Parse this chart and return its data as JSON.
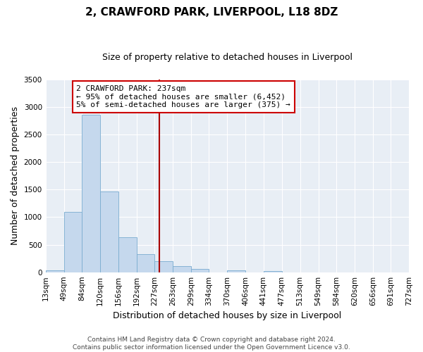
{
  "title": "2, CRAWFORD PARK, LIVERPOOL, L18 8DZ",
  "subtitle": "Size of property relative to detached houses in Liverpool",
  "xlabel": "Distribution of detached houses by size in Liverpool",
  "ylabel": "Number of detached properties",
  "bin_labels": [
    "13sqm",
    "49sqm",
    "84sqm",
    "120sqm",
    "156sqm",
    "192sqm",
    "227sqm",
    "263sqm",
    "299sqm",
    "334sqm",
    "370sqm",
    "406sqm",
    "441sqm",
    "477sqm",
    "513sqm",
    "549sqm",
    "584sqm",
    "620sqm",
    "656sqm",
    "691sqm",
    "727sqm"
  ],
  "bin_edges": [
    13,
    49,
    84,
    120,
    156,
    192,
    227,
    263,
    299,
    334,
    370,
    406,
    441,
    477,
    513,
    549,
    584,
    620,
    656,
    691,
    727
  ],
  "bar_heights": [
    40,
    1090,
    2860,
    1470,
    630,
    330,
    195,
    110,
    65,
    0,
    40,
    0,
    20,
    0,
    0,
    0,
    0,
    0,
    0,
    0
  ],
  "bar_color": "#c5d8ed",
  "bar_edge_color": "#7aacd0",
  "axes_bg_color": "#e8eef5",
  "vline_x": 237,
  "vline_color": "#aa0000",
  "ylim": [
    0,
    3500
  ],
  "yticks": [
    0,
    500,
    1000,
    1500,
    2000,
    2500,
    3000,
    3500
  ],
  "annotation_line1": "2 CRAWFORD PARK: 237sqm",
  "annotation_line2": "← 95% of detached houses are smaller (6,452)",
  "annotation_line3": "5% of semi-detached houses are larger (375) →",
  "annotation_box_color": "#ffffff",
  "annotation_box_edge_color": "#cc0000",
  "footer_line1": "Contains HM Land Registry data © Crown copyright and database right 2024.",
  "footer_line2": "Contains public sector information licensed under the Open Government Licence v3.0.",
  "title_fontsize": 11,
  "subtitle_fontsize": 9,
  "annotation_fontsize": 8,
  "ylabel_fontsize": 9,
  "xlabel_fontsize": 9,
  "tick_fontsize": 7.5,
  "footer_fontsize": 6.5
}
